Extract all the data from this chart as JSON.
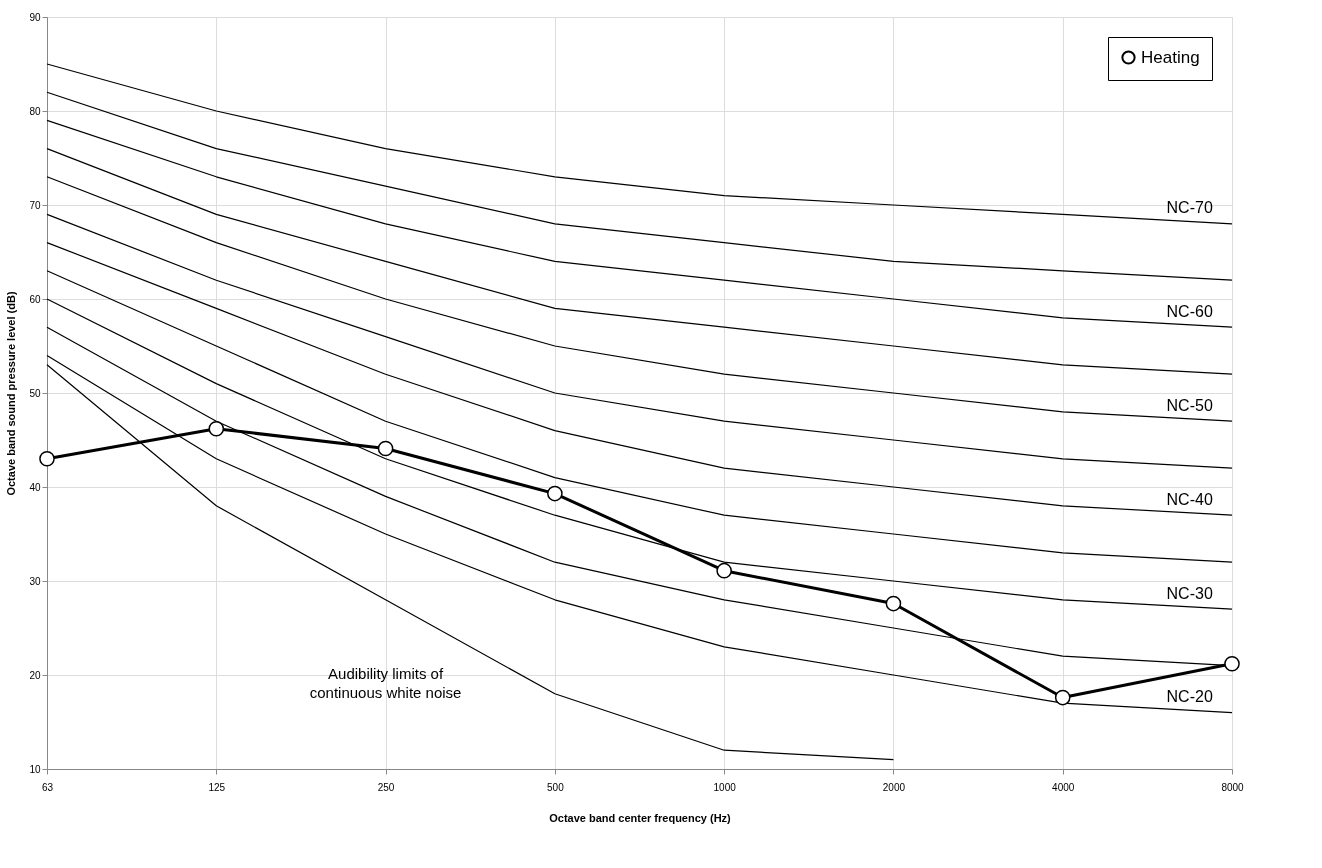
{
  "chart_data": {
    "type": "line",
    "xlabel": "Octave band center frequency (Hz)",
    "ylabel": "Octave band sound pressure level (dB)",
    "categories": [
      "63",
      "125",
      "250",
      "500",
      "1000",
      "2000",
      "4000",
      "8000"
    ],
    "ylim": [
      10,
      90
    ],
    "yticks": [
      10,
      20,
      30,
      40,
      50,
      60,
      70,
      80,
      90
    ],
    "grid": true,
    "legend": "top right",
    "series": [
      {
        "name": "NC-70",
        "color": "#000000",
        "values": [
          85,
          80,
          76,
          73,
          71,
          70,
          69,
          68
        ]
      },
      {
        "color": "#000000",
        "values": [
          82,
          76,
          72,
          68,
          66,
          64,
          63,
          62
        ]
      },
      {
        "name": "NC-60",
        "color": "#000000",
        "values": [
          79,
          73,
          68,
          64,
          62,
          60,
          58,
          57
        ]
      },
      {
        "color": "#000000",
        "values": [
          76,
          69,
          64,
          59,
          57,
          55,
          53,
          52
        ]
      },
      {
        "name": "NC-50",
        "color": "#000000",
        "values": [
          73,
          66,
          60,
          55,
          52,
          50,
          48,
          47
        ]
      },
      {
        "color": "#000000",
        "values": [
          69,
          62,
          56,
          50,
          47,
          45,
          43,
          42
        ]
      },
      {
        "name": "NC-40",
        "color": "#000000",
        "values": [
          66,
          59,
          52,
          46,
          42,
          40,
          38,
          37
        ]
      },
      {
        "color": "#000000",
        "values": [
          63,
          55,
          47,
          41,
          37,
          35,
          33,
          32
        ]
      },
      {
        "name": "NC-30",
        "color": "#000000",
        "values": [
          60,
          51,
          43,
          37,
          32,
          30,
          28,
          27
        ]
      },
      {
        "color": "#000000",
        "values": [
          57,
          47,
          39,
          32,
          28,
          25,
          22,
          21
        ]
      },
      {
        "name": "NC-20",
        "color": "#000000",
        "values": [
          54,
          43,
          35,
          28,
          23,
          20,
          17,
          16
        ]
      },
      {
        "color": "#000000",
        "values": [
          53,
          38,
          28,
          18,
          12,
          11,
          null,
          null
        ]
      },
      {
        "name": "Heating",
        "color": "#000000",
        "marker": "circle",
        "values": [
          43,
          46.2,
          44.1,
          39.3,
          31.1,
          27.6,
          17.6,
          21.2
        ]
      }
    ],
    "annotations": [
      "Audibility limits of\ncontinuous white noise"
    ]
  }
}
